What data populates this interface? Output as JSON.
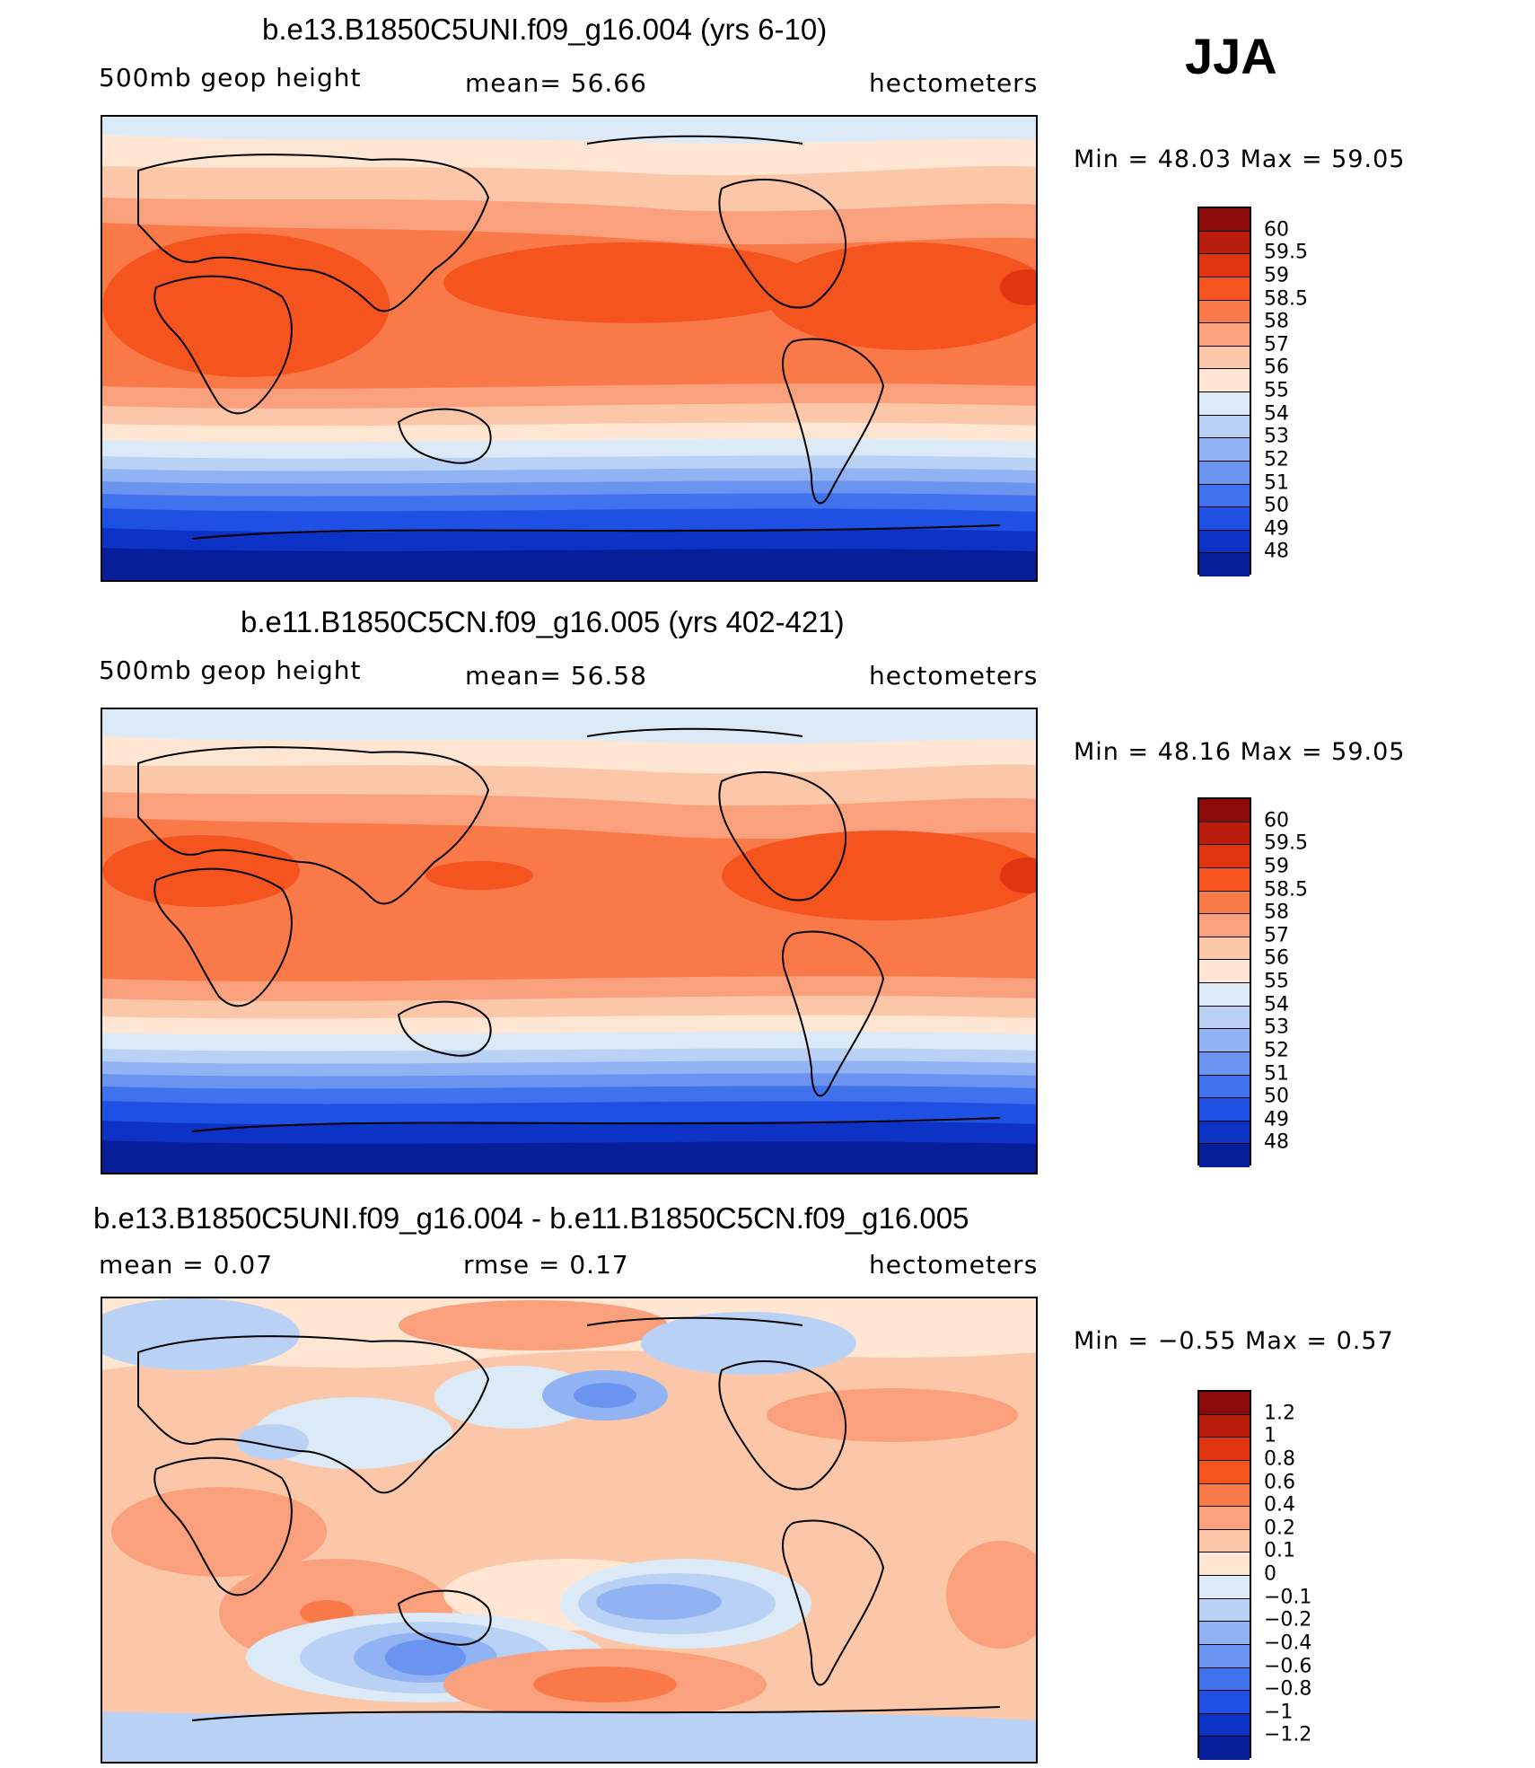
{
  "season": "JJA",
  "panels": [
    {
      "title": "b.e13.B1850C5UNI.f09_g16.004 (yrs 6-10)",
      "left_label": "500mb  geop  height",
      "mid_label": "mean=   56.66",
      "right_label": "hectometers",
      "minmax": "Min  =    48.03  Max  =    59.05",
      "type": "absolute",
      "colorbar": {
        "colors": [
          "#8c0a0a",
          "#b81d0e",
          "#e0350f",
          "#f5541e",
          "#f97a48",
          "#fba07c",
          "#fcc7a9",
          "#fee6d3",
          "#dceaf8",
          "#b8d1f5",
          "#91b3f3",
          "#6a94ef",
          "#3f72ec",
          "#1f50e4",
          "#0d33c6",
          "#071e9a"
        ],
        "labels": [
          "60",
          "59.5",
          "59",
          "58.5",
          "58",
          "57",
          "56",
          "55",
          "54",
          "53",
          "52",
          "51",
          "50",
          "49",
          "48"
        ]
      }
    },
    {
      "title": "b.e11.B1850C5CN.f09_g16.005 (yrs 402-421)",
      "left_label": "500mb  geop  height",
      "mid_label": "mean=   56.58",
      "right_label": "hectometers",
      "minmax": "Min  =    48.16  Max  =    59.05",
      "type": "absolute",
      "colorbar": {
        "colors": [
          "#8c0a0a",
          "#b81d0e",
          "#e0350f",
          "#f5541e",
          "#f97a48",
          "#fba07c",
          "#fcc7a9",
          "#fee6d3",
          "#dceaf8",
          "#b8d1f5",
          "#91b3f3",
          "#6a94ef",
          "#3f72ec",
          "#1f50e4",
          "#0d33c6",
          "#071e9a"
        ],
        "labels": [
          "60",
          "59.5",
          "59",
          "58.5",
          "58",
          "57",
          "56",
          "55",
          "54",
          "53",
          "52",
          "51",
          "50",
          "49",
          "48"
        ]
      }
    },
    {
      "title": "b.e13.B1850C5UNI.f09_g16.004 - b.e11.B1850C5CN.f09_g16.005",
      "left_label": "mean  =      0.07",
      "mid_label": "rmse  =      0.17",
      "right_label": "hectometers",
      "minmax": "Min  =   −0.55  Max  =      0.57",
      "type": "difference",
      "colorbar": {
        "colors": [
          "#8c0a0a",
          "#b81d0e",
          "#e0350f",
          "#f5541e",
          "#f97a48",
          "#fba07c",
          "#fcc7a9",
          "#fee6d3",
          "#dceaf8",
          "#b8d1f5",
          "#91b3f3",
          "#6a94ef",
          "#3f72ec",
          "#1f50e4",
          "#0d33c6",
          "#071e9a"
        ],
        "labels": [
          "1.2",
          "1",
          "0.8",
          "0.6",
          "0.4",
          "0.2",
          "0.1",
          "0",
          "−0.1",
          "−0.2",
          "−0.4",
          "−0.6",
          "−0.8",
          "−1",
          "−1.2"
        ]
      }
    }
  ]
}
